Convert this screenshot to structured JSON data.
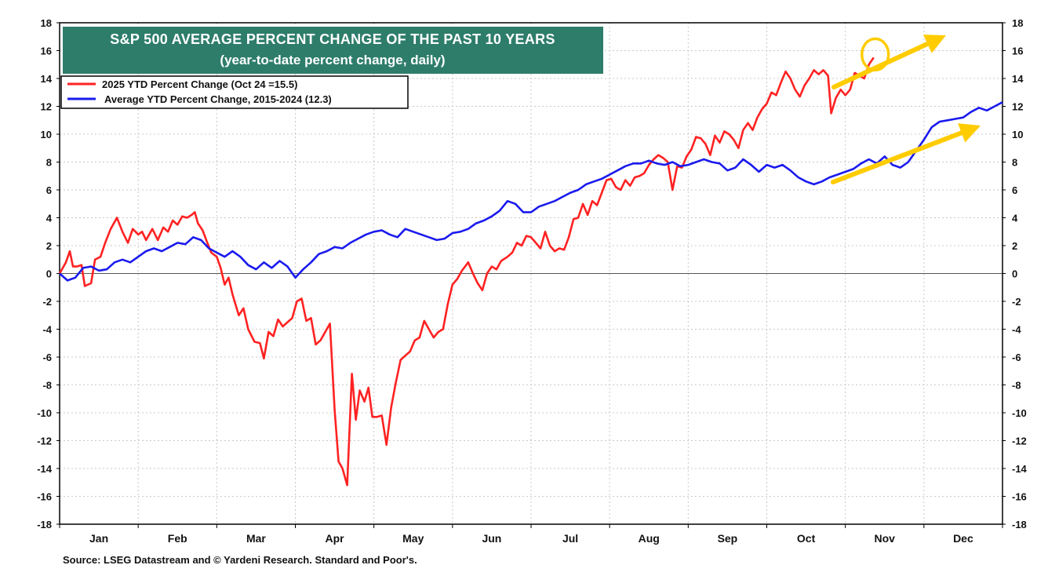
{
  "chart_data": {
    "type": "line",
    "title": "S&P 500 AVERAGE PERCENT CHANGE OF THE PAST 10 YEARS",
    "subtitle": "(year-to-date percent change, daily)",
    "x_categories": [
      "Jan",
      "Feb",
      "Mar",
      "Apr",
      "May",
      "Jun",
      "Jul",
      "Aug",
      "Sep",
      "Oct",
      "Nov",
      "Dec"
    ],
    "xlim": [
      0,
      12
    ],
    "ylim": [
      -18,
      18
    ],
    "yticks": [
      -18,
      -16,
      -14,
      -12,
      -10,
      -8,
      -6,
      -4,
      -2,
      0,
      2,
      4,
      6,
      8,
      10,
      12,
      14,
      16,
      18
    ],
    "grid": true,
    "legend_position": "top-left",
    "series": [
      {
        "name": "2025 YTD Percent Change (Oct 24 =15.5)",
        "color": "#ff2222",
        "points": [
          [
            0,
            0
          ],
          [
            0.08,
            0.8
          ],
          [
            0.13,
            1.6
          ],
          [
            0.17,
            0.5
          ],
          [
            0.22,
            0.5
          ],
          [
            0.28,
            0.6
          ],
          [
            0.32,
            -0.9
          ],
          [
            0.4,
            -0.7
          ],
          [
            0.45,
            1.0
          ],
          [
            0.52,
            1.2
          ],
          [
            0.58,
            2.2
          ],
          [
            0.65,
            3.2
          ],
          [
            0.73,
            4.0
          ],
          [
            0.8,
            3.0
          ],
          [
            0.87,
            2.2
          ],
          [
            0.93,
            3.2
          ],
          [
            1.0,
            2.8
          ],
          [
            1.05,
            3.0
          ],
          [
            1.1,
            2.4
          ],
          [
            1.18,
            3.2
          ],
          [
            1.25,
            2.4
          ],
          [
            1.32,
            3.3
          ],
          [
            1.38,
            3.0
          ],
          [
            1.44,
            3.8
          ],
          [
            1.5,
            3.5
          ],
          [
            1.56,
            4.1
          ],
          [
            1.62,
            4.0
          ],
          [
            1.68,
            4.2
          ],
          [
            1.72,
            4.4
          ],
          [
            1.76,
            3.6
          ],
          [
            1.82,
            3.1
          ],
          [
            1.88,
            2.2
          ],
          [
            1.93,
            1.5
          ],
          [
            2.0,
            1.2
          ],
          [
            2.05,
            0.4
          ],
          [
            2.1,
            -0.8
          ],
          [
            2.15,
            -0.3
          ],
          [
            2.2,
            -1.5
          ],
          [
            2.28,
            -3.0
          ],
          [
            2.34,
            -2.5
          ],
          [
            2.4,
            -4.0
          ],
          [
            2.48,
            -4.9
          ],
          [
            2.55,
            -5.0
          ],
          [
            2.6,
            -6.1
          ],
          [
            2.66,
            -4.2
          ],
          [
            2.72,
            -4.5
          ],
          [
            2.78,
            -3.3
          ],
          [
            2.84,
            -3.8
          ],
          [
            2.9,
            -3.5
          ],
          [
            2.96,
            -3.2
          ],
          [
            3.02,
            -2.0
          ],
          [
            3.08,
            -1.8
          ],
          [
            3.14,
            -3.4
          ],
          [
            3.2,
            -3.2
          ],
          [
            3.26,
            -5.1
          ],
          [
            3.32,
            -4.8
          ],
          [
            3.38,
            -4.2
          ],
          [
            3.44,
            -3.6
          ],
          [
            3.5,
            -9.8
          ],
          [
            3.55,
            -13.5
          ],
          [
            3.6,
            -14.0
          ],
          [
            3.66,
            -15.2
          ],
          [
            3.72,
            -7.2
          ],
          [
            3.77,
            -10.5
          ],
          [
            3.82,
            -8.4
          ],
          [
            3.88,
            -9.2
          ],
          [
            3.93,
            -8.2
          ],
          [
            3.98,
            -10.3
          ],
          [
            4.04,
            -10.3
          ],
          [
            4.1,
            -10.2
          ],
          [
            4.16,
            -12.3
          ],
          [
            4.22,
            -9.6
          ],
          [
            4.28,
            -7.8
          ],
          [
            4.34,
            -6.2
          ],
          [
            4.4,
            -5.9
          ],
          [
            4.46,
            -5.6
          ],
          [
            4.52,
            -4.8
          ],
          [
            4.58,
            -4.6
          ],
          [
            4.64,
            -3.4
          ],
          [
            4.7,
            -4.0
          ],
          [
            4.76,
            -4.6
          ],
          [
            4.82,
            -4.2
          ],
          [
            4.88,
            -4.0
          ],
          [
            4.94,
            -2.2
          ],
          [
            5.0,
            -0.8
          ],
          [
            5.06,
            -0.4
          ],
          [
            5.12,
            0.2
          ],
          [
            5.2,
            0.8
          ],
          [
            5.26,
            0.0
          ],
          [
            5.32,
            -0.7
          ],
          [
            5.38,
            -1.2
          ],
          [
            5.44,
            0.0
          ],
          [
            5.5,
            0.5
          ],
          [
            5.56,
            0.3
          ],
          [
            5.62,
            0.9
          ],
          [
            5.7,
            1.2
          ],
          [
            5.76,
            1.5
          ],
          [
            5.82,
            2.2
          ],
          [
            5.88,
            2.0
          ],
          [
            5.94,
            2.7
          ],
          [
            6.0,
            2.6
          ],
          [
            6.06,
            2.2
          ],
          [
            6.12,
            1.8
          ],
          [
            6.18,
            3.0
          ],
          [
            6.24,
            2.0
          ],
          [
            6.3,
            1.6
          ],
          [
            6.36,
            1.8
          ],
          [
            6.42,
            1.7
          ],
          [
            6.48,
            2.6
          ],
          [
            6.54,
            3.9
          ],
          [
            6.6,
            4.0
          ],
          [
            6.66,
            5.0
          ],
          [
            6.72,
            4.2
          ],
          [
            6.78,
            5.2
          ],
          [
            6.84,
            4.9
          ],
          [
            6.9,
            5.8
          ],
          [
            6.96,
            6.7
          ],
          [
            7.02,
            6.8
          ],
          [
            7.08,
            6.2
          ],
          [
            7.14,
            6.0
          ],
          [
            7.2,
            6.7
          ],
          [
            7.26,
            6.3
          ],
          [
            7.32,
            6.9
          ],
          [
            7.38,
            7.0
          ],
          [
            7.44,
            7.2
          ],
          [
            7.5,
            7.8
          ],
          [
            7.56,
            8.2
          ],
          [
            7.62,
            8.5
          ],
          [
            7.68,
            8.3
          ],
          [
            7.74,
            8.0
          ],
          [
            7.8,
            6.0
          ],
          [
            7.86,
            7.7
          ],
          [
            7.92,
            7.6
          ],
          [
            7.98,
            8.4
          ],
          [
            8.04,
            8.9
          ],
          [
            8.1,
            9.8
          ],
          [
            8.16,
            9.7
          ],
          [
            8.22,
            9.3
          ],
          [
            8.28,
            8.5
          ],
          [
            8.34,
            9.9
          ],
          [
            8.4,
            9.4
          ],
          [
            8.46,
            10.2
          ],
          [
            8.52,
            10.0
          ],
          [
            8.58,
            9.6
          ],
          [
            8.64,
            9.0
          ],
          [
            8.7,
            10.3
          ],
          [
            8.76,
            10.8
          ],
          [
            8.82,
            10.3
          ],
          [
            8.88,
            11.2
          ],
          [
            8.94,
            11.8
          ],
          [
            9.0,
            12.2
          ],
          [
            9.06,
            13.0
          ],
          [
            9.12,
            12.8
          ],
          [
            9.18,
            13.7
          ],
          [
            9.24,
            14.5
          ],
          [
            9.3,
            14.0
          ],
          [
            9.36,
            13.2
          ],
          [
            9.42,
            12.7
          ],
          [
            9.48,
            13.5
          ],
          [
            9.54,
            14.0
          ],
          [
            9.6,
            14.6
          ],
          [
            9.66,
            14.3
          ],
          [
            9.72,
            14.6
          ],
          [
            9.78,
            14.2
          ],
          [
            9.82,
            11.5
          ],
          [
            9.88,
            12.6
          ],
          [
            9.94,
            13.2
          ],
          [
            10.0,
            12.8
          ],
          [
            10.06,
            13.2
          ],
          [
            10.12,
            14.4
          ],
          [
            10.18,
            14.2
          ],
          [
            10.24,
            14.0
          ],
          [
            10.3,
            15.0
          ],
          [
            10.36,
            15.5
          ]
        ]
      },
      {
        "name": "Average YTD Percent Change, 2015-2024 (12.3)",
        "color": "#1a1aee",
        "points": [
          [
            0,
            0
          ],
          [
            0.1,
            -0.5
          ],
          [
            0.2,
            -0.3
          ],
          [
            0.3,
            0.4
          ],
          [
            0.4,
            0.5
          ],
          [
            0.5,
            0.2
          ],
          [
            0.6,
            0.3
          ],
          [
            0.7,
            0.8
          ],
          [
            0.8,
            1.0
          ],
          [
            0.9,
            0.8
          ],
          [
            1.0,
            1.2
          ],
          [
            1.1,
            1.6
          ],
          [
            1.2,
            1.8
          ],
          [
            1.3,
            1.6
          ],
          [
            1.4,
            1.9
          ],
          [
            1.5,
            2.2
          ],
          [
            1.6,
            2.1
          ],
          [
            1.7,
            2.6
          ],
          [
            1.8,
            2.4
          ],
          [
            1.9,
            1.8
          ],
          [
            2.0,
            1.5
          ],
          [
            2.1,
            1.2
          ],
          [
            2.2,
            1.6
          ],
          [
            2.3,
            1.2
          ],
          [
            2.4,
            0.6
          ],
          [
            2.5,
            0.3
          ],
          [
            2.6,
            0.8
          ],
          [
            2.7,
            0.4
          ],
          [
            2.8,
            0.9
          ],
          [
            2.9,
            0.5
          ],
          [
            3.0,
            -0.3
          ],
          [
            3.1,
            0.3
          ],
          [
            3.2,
            0.8
          ],
          [
            3.3,
            1.4
          ],
          [
            3.4,
            1.6
          ],
          [
            3.5,
            1.9
          ],
          [
            3.6,
            1.8
          ],
          [
            3.7,
            2.2
          ],
          [
            3.8,
            2.5
          ],
          [
            3.9,
            2.8
          ],
          [
            4.0,
            3.0
          ],
          [
            4.1,
            3.1
          ],
          [
            4.2,
            2.8
          ],
          [
            4.3,
            2.6
          ],
          [
            4.4,
            3.2
          ],
          [
            4.5,
            3.0
          ],
          [
            4.6,
            2.8
          ],
          [
            4.7,
            2.6
          ],
          [
            4.8,
            2.4
          ],
          [
            4.9,
            2.5
          ],
          [
            5.0,
            2.9
          ],
          [
            5.1,
            3.0
          ],
          [
            5.2,
            3.2
          ],
          [
            5.3,
            3.6
          ],
          [
            5.4,
            3.8
          ],
          [
            5.5,
            4.1
          ],
          [
            5.6,
            4.5
          ],
          [
            5.7,
            5.2
          ],
          [
            5.8,
            5.0
          ],
          [
            5.9,
            4.4
          ],
          [
            6.0,
            4.4
          ],
          [
            6.1,
            4.8
          ],
          [
            6.2,
            5.0
          ],
          [
            6.3,
            5.2
          ],
          [
            6.4,
            5.5
          ],
          [
            6.5,
            5.8
          ],
          [
            6.6,
            6.0
          ],
          [
            6.7,
            6.4
          ],
          [
            6.8,
            6.6
          ],
          [
            6.9,
            6.8
          ],
          [
            7.0,
            7.1
          ],
          [
            7.1,
            7.4
          ],
          [
            7.2,
            7.7
          ],
          [
            7.3,
            7.9
          ],
          [
            7.4,
            7.9
          ],
          [
            7.5,
            8.1
          ],
          [
            7.6,
            7.9
          ],
          [
            7.7,
            7.8
          ],
          [
            7.8,
            8.0
          ],
          [
            7.9,
            7.7
          ],
          [
            8.0,
            7.8
          ],
          [
            8.1,
            8.0
          ],
          [
            8.2,
            8.2
          ],
          [
            8.3,
            8.0
          ],
          [
            8.4,
            7.9
          ],
          [
            8.5,
            7.4
          ],
          [
            8.6,
            7.6
          ],
          [
            8.7,
            8.2
          ],
          [
            8.8,
            7.8
          ],
          [
            8.9,
            7.3
          ],
          [
            9.0,
            7.8
          ],
          [
            9.1,
            7.6
          ],
          [
            9.2,
            7.8
          ],
          [
            9.3,
            7.4
          ],
          [
            9.4,
            6.9
          ],
          [
            9.5,
            6.6
          ],
          [
            9.6,
            6.4
          ],
          [
            9.7,
            6.6
          ],
          [
            9.8,
            6.9
          ],
          [
            9.9,
            7.1
          ],
          [
            10.0,
            7.3
          ],
          [
            10.1,
            7.5
          ],
          [
            10.2,
            7.9
          ],
          [
            10.3,
            8.2
          ],
          [
            10.4,
            7.9
          ],
          [
            10.5,
            8.4
          ],
          [
            10.6,
            7.8
          ],
          [
            10.7,
            7.6
          ],
          [
            10.8,
            8.0
          ],
          [
            10.9,
            8.8
          ],
          [
            11.0,
            9.6
          ],
          [
            11.1,
            10.5
          ],
          [
            11.2,
            10.9
          ],
          [
            11.3,
            11.0
          ],
          [
            11.4,
            11.1
          ],
          [
            11.5,
            11.2
          ],
          [
            11.6,
            11.6
          ],
          [
            11.7,
            11.9
          ],
          [
            11.8,
            11.7
          ],
          [
            11.9,
            12.0
          ],
          [
            12.0,
            12.3
          ]
        ]
      }
    ],
    "annotations": [
      {
        "type": "circle",
        "color": "#ffcc00",
        "at": [
          10.36,
          15.5
        ]
      },
      {
        "type": "arrow",
        "color": "#ffcc00",
        "description": "rising arrow beside 2025 line"
      },
      {
        "type": "arrow",
        "color": "#ffcc00",
        "description": "rising arrow beside average line"
      }
    ]
  },
  "source_note": "Source: LSEG Datastream and © Yardeni Research. Standard and Poor's.",
  "colors": {
    "banner_bg": "#2e7d6b",
    "red_line": "#ff2222",
    "blue_line": "#1a1aee",
    "highlight": "#ffcc00",
    "grid": "#c8c8c8"
  }
}
